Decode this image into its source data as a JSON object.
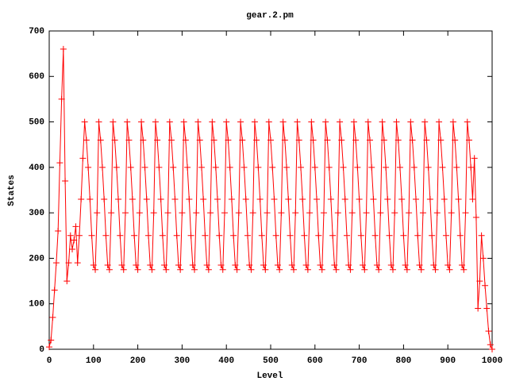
{
  "chart_data": {
    "type": "line",
    "title": "gear.2.pm",
    "x_label": "Level",
    "y_label": "States",
    "x": [
      0,
      4,
      8,
      12,
      16,
      20,
      24,
      28,
      32,
      36,
      40,
      44,
      48,
      52,
      56,
      60,
      64,
      68,
      72,
      76,
      80,
      84,
      88,
      92,
      96,
      100,
      104,
      108,
      112,
      116,
      120,
      124,
      128,
      132,
      136,
      140,
      144,
      148,
      152,
      156,
      160,
      164,
      168,
      172,
      176,
      180,
      184,
      188,
      192,
      196,
      200,
      204,
      208,
      212,
      216,
      220,
      224,
      228,
      232,
      236,
      240,
      244,
      248,
      252,
      256,
      260,
      264,
      268,
      272,
      276,
      280,
      284,
      288,
      292,
      296,
      300,
      304,
      308,
      312,
      316,
      320,
      324,
      328,
      332,
      336,
      340,
      344,
      348,
      352,
      356,
      360,
      364,
      368,
      372,
      376,
      380,
      384,
      388,
      392,
      396,
      400,
      404,
      408,
      412,
      416,
      420,
      424,
      428,
      432,
      436,
      440,
      444,
      448,
      452,
      456,
      460,
      464,
      468,
      472,
      476,
      480,
      484,
      488,
      492,
      496,
      500,
      504,
      508,
      512,
      516,
      520,
      524,
      528,
      532,
      536,
      540,
      544,
      548,
      552,
      556,
      560,
      564,
      568,
      572,
      576,
      580,
      584,
      588,
      592,
      596,
      600,
      604,
      608,
      612,
      616,
      620,
      624,
      628,
      632,
      636,
      640,
      644,
      648,
      652,
      656,
      660,
      664,
      668,
      672,
      676,
      680,
      684,
      688,
      692,
      696,
      700,
      704,
      708,
      712,
      716,
      720,
      724,
      728,
      732,
      736,
      740,
      744,
      748,
      752,
      756,
      760,
      764,
      768,
      772,
      776,
      780,
      784,
      788,
      792,
      796,
      800,
      804,
      808,
      812,
      816,
      820,
      824,
      828,
      832,
      836,
      840,
      844,
      848,
      852,
      856,
      860,
      864,
      868,
      872,
      876,
      880,
      884,
      888,
      892,
      896,
      900,
      904,
      908,
      912,
      916,
      920,
      924,
      928,
      932,
      936,
      940,
      944,
      948,
      952,
      956,
      960,
      964,
      968,
      972,
      976,
      980,
      984,
      988,
      992,
      996,
      1000
    ],
    "series": [
      {
        "color": "#ff0000",
        "values": [
          5,
          20,
          70,
          130,
          190,
          260,
          410,
          550,
          660,
          370,
          150,
          190,
          250,
          220,
          240,
          270,
          190,
          250,
          330,
          420,
          500,
          460,
          400,
          330,
          250,
          185,
          175,
          300,
          500,
          460,
          400,
          330,
          250,
          185,
          175,
          300,
          500,
          460,
          400,
          330,
          250,
          185,
          175,
          300,
          500,
          460,
          400,
          330,
          250,
          185,
          175,
          300,
          500,
          460,
          400,
          330,
          250,
          185,
          175,
          300,
          500,
          460,
          400,
          330,
          250,
          185,
          175,
          300,
          500,
          460,
          400,
          330,
          250,
          185,
          175,
          300,
          500,
          460,
          400,
          330,
          250,
          185,
          175,
          300,
          500,
          460,
          400,
          330,
          250,
          185,
          175,
          300,
          500,
          460,
          400,
          330,
          250,
          185,
          175,
          300,
          500,
          460,
          400,
          330,
          250,
          185,
          175,
          300,
          500,
          460,
          400,
          330,
          250,
          185,
          175,
          300,
          500,
          460,
          400,
          330,
          250,
          185,
          175,
          300,
          500,
          460,
          400,
          330,
          250,
          185,
          175,
          300,
          500,
          460,
          400,
          330,
          250,
          185,
          175,
          300,
          500,
          460,
          400,
          330,
          250,
          185,
          175,
          300,
          500,
          460,
          400,
          330,
          250,
          185,
          175,
          300,
          500,
          460,
          400,
          330,
          250,
          185,
          175,
          300,
          500,
          460,
          400,
          330,
          250,
          185,
          175,
          300,
          500,
          460,
          400,
          330,
          250,
          185,
          175,
          300,
          500,
          460,
          400,
          330,
          250,
          185,
          175,
          300,
          500,
          460,
          400,
          330,
          250,
          185,
          175,
          300,
          500,
          460,
          400,
          330,
          250,
          185,
          175,
          300,
          500,
          460,
          400,
          330,
          250,
          185,
          175,
          300,
          500,
          460,
          400,
          330,
          250,
          185,
          175,
          300,
          500,
          460,
          400,
          330,
          250,
          185,
          175,
          300,
          500,
          460,
          400,
          330,
          250,
          185,
          175,
          300,
          500,
          460,
          400,
          330,
          420,
          290,
          90,
          150,
          250,
          200,
          140,
          90,
          40,
          10,
          0
        ]
      }
    ],
    "xlim": [
      0,
      1000
    ],
    "xticks": [
      0,
      100,
      200,
      300,
      400,
      500,
      600,
      700,
      800,
      900,
      1000
    ],
    "ylim": [
      0,
      700
    ],
    "yticks": [
      0,
      100,
      200,
      300,
      400,
      500,
      600,
      700
    ]
  }
}
